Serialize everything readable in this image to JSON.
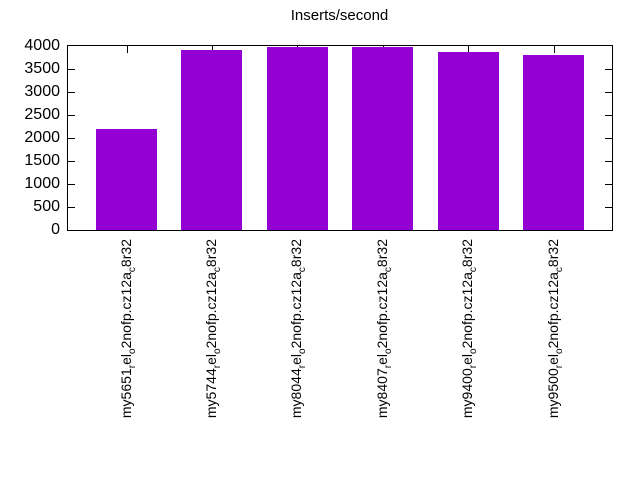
{
  "chart_data": {
    "type": "bar",
    "title": "Inserts/second",
    "categories": [
      "my5651_rel_o2nofp.cz12a_c8r32",
      "my5744_rel_o2nofp.cz12a_c8r32",
      "my8044_rel_o2nofp.cz12a_c8r32",
      "my8407_rel_o2nofp.cz12a_c8r32",
      "my9400_rel_o2nofp.cz12a_c8r32",
      "my9500_rel_o2nofp.cz12a_c8r32"
    ],
    "values": [
      2200,
      3910,
      3980,
      3980,
      3870,
      3810
    ],
    "xlabel": "",
    "ylabel": "",
    "ylim": [
      0,
      4000
    ],
    "yticks": [
      0,
      500,
      1000,
      1500,
      2000,
      2500,
      3000,
      3500,
      4000
    ],
    "xtick_rotation_degrees": 90,
    "xtick_label_format": "gnuplot-enhanced: underscore renders following character as subscript",
    "grid": false,
    "legend": "none",
    "bar_color": "#9400d3",
    "text_color": "#000000",
    "background_color": "#ffffff"
  }
}
